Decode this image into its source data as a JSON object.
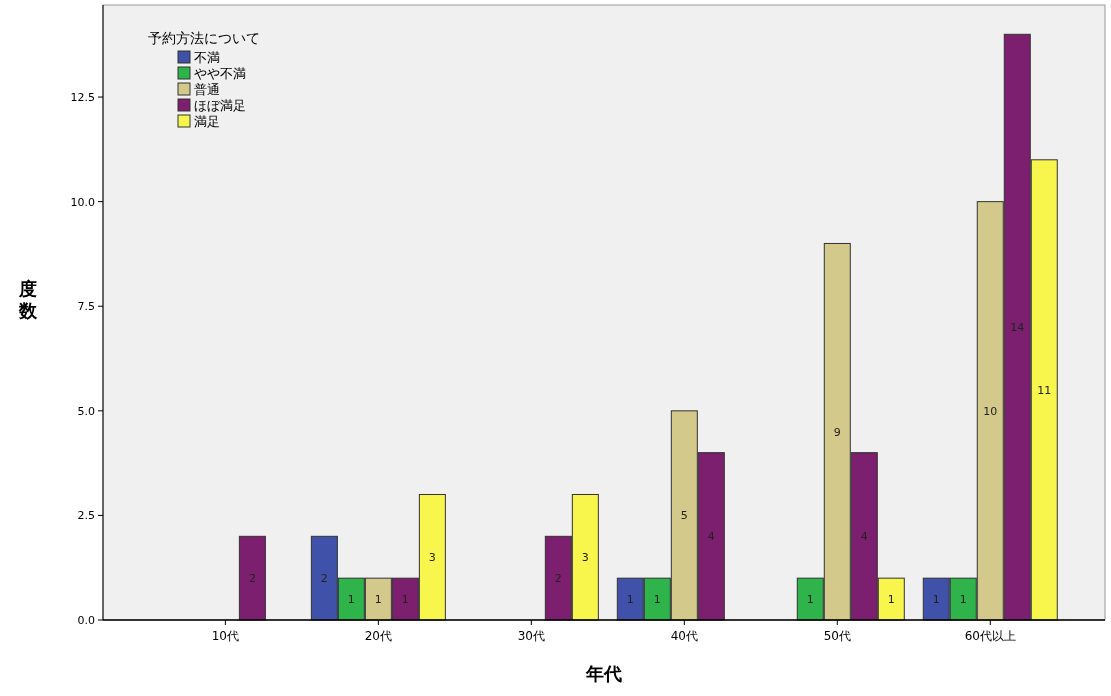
{
  "chart_data": {
    "type": "bar",
    "xlabel": "年代",
    "ylabel": "度数",
    "legend_title": "予約方法について",
    "categories": [
      "10代",
      "20代",
      "30代",
      "40代",
      "50代",
      "60代以上"
    ],
    "series": [
      {
        "name": "不満",
        "color": "#3f51a8",
        "values": [
          null,
          2,
          null,
          1,
          null,
          1
        ]
      },
      {
        "name": "やや不満",
        "color": "#2eb44a",
        "values": [
          null,
          1,
          null,
          1,
          1,
          1
        ]
      },
      {
        "name": "普通",
        "color": "#d3c98a",
        "values": [
          null,
          1,
          null,
          5,
          9,
          10
        ]
      },
      {
        "name": "ほぼ満足",
        "color": "#7b1f6e",
        "values": [
          2,
          1,
          2,
          4,
          4,
          14
        ]
      },
      {
        "name": "満足",
        "color": "#f8f54c",
        "values": [
          null,
          3,
          3,
          null,
          1,
          11
        ]
      }
    ],
    "ylim": [
      0,
      14.7
    ],
    "yticks": [
      {
        "value": 0,
        "label": "0.0"
      },
      {
        "value": 2.5,
        "label": "2.5"
      },
      {
        "value": 5,
        "label": "5.0"
      },
      {
        "value": 7.5,
        "label": "7.5"
      },
      {
        "value": 10,
        "label": "10.0"
      },
      {
        "value": 12.5,
        "label": "12.5"
      }
    ],
    "data_labels": true,
    "grid": false,
    "legend": "top left"
  }
}
